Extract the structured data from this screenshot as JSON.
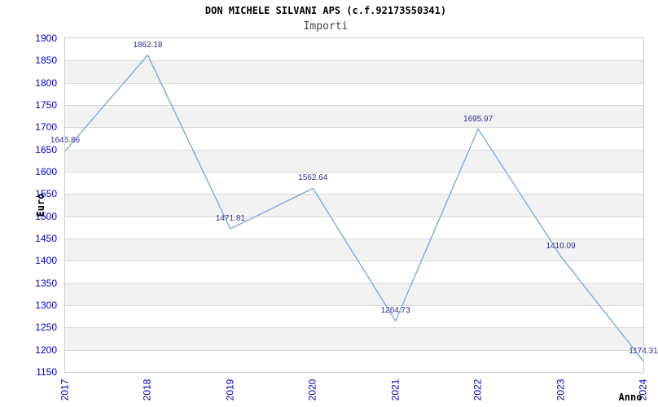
{
  "chart_data": {
    "type": "line",
    "title": "DON MICHELE SILVANI APS (c.f.92173550341)",
    "subtitle": "Importi",
    "xlabel": "Anno",
    "ylabel": "Euro",
    "categories": [
      "2017",
      "2018",
      "2019",
      "2020",
      "2021",
      "2022",
      "2023",
      "2024"
    ],
    "values": [
      1646.86,
      1862.18,
      1471.81,
      1562.64,
      1264.73,
      1695.97,
      1410.09,
      1174.31
    ],
    "point_labels": [
      "1646.86",
      "1862.18",
      "1471.81",
      "1562.64",
      "1264.73",
      "1695.97",
      "1410.09",
      "1174.31"
    ],
    "ylim": [
      1150,
      1900
    ],
    "ytick_step": 50,
    "legend": "none",
    "grid": "horizontal gridlines with alternating shaded bands",
    "colors": {
      "line": "#74a5de",
      "axis_tick_labels": "#0000cc",
      "point_labels": "#2e2e8f",
      "band": "#f2f2f2",
      "gridline": "#d9d9d9",
      "plot_border": "#cccccc",
      "title": "#000000",
      "subtitle": "#444444",
      "axis_titles": "#000000",
      "background": "#ffffff"
    }
  }
}
